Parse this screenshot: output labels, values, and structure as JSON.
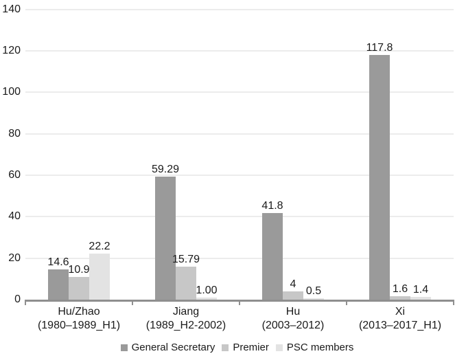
{
  "chart_data": {
    "type": "bar",
    "title": "",
    "categories": [
      {
        "label": "Hu/Zhao",
        "sublabel": "(1980–1989_H1)"
      },
      {
        "label": "Jiang",
        "sublabel": "(1989_H2-2002)"
      },
      {
        "label": "Hu",
        "sublabel": "(2003–2012)"
      },
      {
        "label": "Xi",
        "sublabel": "(2013–2017_H1)"
      }
    ],
    "series": [
      {
        "name": "General Secretary",
        "color": "#9a9a9a",
        "values": [
          14.6,
          59.29,
          41.8,
          117.8
        ],
        "value_labels": [
          "14.6",
          "59.29",
          "41.8",
          "117.8"
        ]
      },
      {
        "name": "Premier",
        "color": "#c7c7c7",
        "values": [
          10.9,
          15.79,
          4,
          1.6
        ],
        "value_labels": [
          "10.9",
          "15.79",
          "4",
          "1.6"
        ]
      },
      {
        "name": "PSC members",
        "color": "#e3e3e3",
        "values": [
          22.2,
          1.0,
          0.5,
          1.4
        ],
        "value_labels": [
          "22.2",
          "1.00",
          "0.5",
          "1.4"
        ]
      }
    ],
    "ylim": [
      0,
      140
    ],
    "yticks": [
      0,
      20,
      40,
      60,
      80,
      100,
      120,
      140
    ],
    "grid": true,
    "legend_position": "bottom",
    "colors": {
      "text": "#1a1a1a",
      "axis": "#8f8f8f",
      "gridline": "#ececec",
      "background": "#ffffff"
    }
  }
}
